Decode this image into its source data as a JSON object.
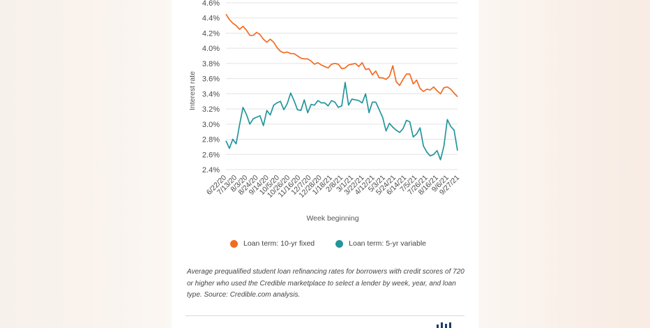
{
  "chart_data": {
    "type": "line",
    "xlabel": "Week beginning",
    "ylabel": "Interest rate",
    "ylim": [
      2.4,
      4.6
    ],
    "yticks": [
      "2.4%",
      "2.6%",
      "2.8%",
      "3.0%",
      "3.2%",
      "3.4%",
      "3.6%",
      "3.8%",
      "4.0%",
      "4.2%",
      "4.4%",
      "4.6%"
    ],
    "ytick_values": [
      2.4,
      2.6,
      2.8,
      3.0,
      3.2,
      3.4,
      3.6,
      3.8,
      4.0,
      4.2,
      4.4,
      4.6
    ],
    "xtick_labels": [
      "6/22/20",
      "7/13/20",
      "8/3/20",
      "8/24/20",
      "9/14/20",
      "10/5/20",
      "10/26/20",
      "11/16/20",
      "12/7/20",
      "12/28/20",
      "1/18/21",
      "2/8/21",
      "3/1/21",
      "3/22/21",
      "4/12/21",
      "5/3/21",
      "5/24/21",
      "6/14/21",
      "7/5/21",
      "7/26/21",
      "8/16/21",
      "9/6/21",
      "9/27/21"
    ],
    "legend_position": "bottom",
    "grid": true,
    "series": [
      {
        "name": "Loan term: 10-yr fixed",
        "color": "#f26b21",
        "values": [
          4.45,
          4.38,
          4.33,
          4.3,
          4.25,
          4.29,
          4.24,
          4.17,
          4.17,
          4.21,
          4.18,
          4.12,
          4.08,
          4.12,
          4.08,
          4.01,
          3.96,
          3.94,
          3.95,
          3.93,
          3.93,
          3.9,
          3.87,
          3.86,
          3.86,
          3.83,
          3.79,
          3.81,
          3.78,
          3.76,
          3.74,
          3.79,
          3.8,
          3.79,
          3.73,
          3.74,
          3.78,
          3.79,
          3.8,
          3.76,
          3.81,
          3.72,
          3.73,
          3.65,
          3.7,
          3.61,
          3.61,
          3.59,
          3.63,
          3.77,
          3.56,
          3.51,
          3.59,
          3.66,
          3.66,
          3.53,
          3.58,
          3.47,
          3.43,
          3.46,
          3.45,
          3.49,
          3.44,
          3.4,
          3.48,
          3.49,
          3.46,
          3.41,
          3.36
        ]
      },
      {
        "name": "Loan term: 5-yr variable",
        "color": "#23959b",
        "values": [
          2.78,
          2.68,
          2.8,
          2.74,
          2.99,
          3.22,
          3.13,
          3.0,
          3.07,
          3.09,
          3.11,
          2.98,
          3.18,
          3.12,
          3.25,
          3.28,
          3.3,
          3.19,
          3.27,
          3.41,
          3.31,
          3.19,
          3.18,
          3.32,
          3.15,
          3.26,
          3.25,
          3.31,
          3.28,
          3.28,
          3.24,
          3.31,
          3.29,
          3.22,
          3.24,
          3.55,
          3.25,
          3.33,
          3.32,
          3.31,
          3.28,
          3.4,
          3.15,
          3.29,
          3.29,
          3.19,
          3.09,
          2.91,
          3.01,
          2.96,
          2.92,
          2.89,
          2.94,
          3.05,
          3.03,
          2.83,
          2.87,
          2.95,
          2.71,
          2.63,
          2.58,
          2.6,
          2.65,
          2.53,
          2.71,
          3.06,
          2.97,
          2.92,
          2.65
        ]
      }
    ]
  },
  "caption": "Average prequalified student loan refinancing rates for borrowers with credit scores of 720 or higher who used the Credible marketplace to select a lender by week, year, and loan type. Source: Credible.com analysis."
}
